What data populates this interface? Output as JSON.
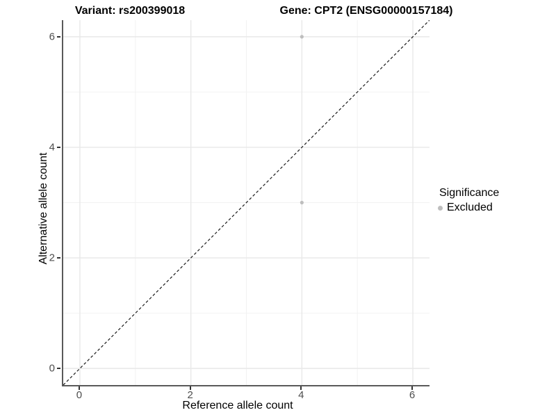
{
  "titles": {
    "variant": "Variant: rs200399018",
    "gene": "Gene: CPT2 (ENSG00000157184)"
  },
  "chart_data": {
    "type": "scatter",
    "title_left": "Variant: rs200399018",
    "title_right": "Gene: CPT2 (ENSG00000157184)",
    "xlabel": "Reference allele count",
    "ylabel": "Alternative allele count",
    "xlim": [
      -0.3,
      6.3
    ],
    "ylim": [
      -0.3,
      6.3
    ],
    "xticks": [
      0,
      2,
      4,
      6
    ],
    "yticks": [
      0,
      2,
      4,
      6
    ],
    "xticks_minor": [
      1,
      3,
      5
    ],
    "yticks_minor": [
      1,
      3,
      5
    ],
    "grid": "on",
    "aspect": "equal",
    "series": [
      {
        "name": "Excluded",
        "color": "#bebebe",
        "points": [
          {
            "x": 4,
            "y": 6
          },
          {
            "x": 4,
            "y": 3
          }
        ]
      }
    ],
    "reference_line": {
      "kind": "identity y=x",
      "style": "dashed",
      "color": "#1a1a1a"
    },
    "legend": {
      "title": "Significance",
      "position": "right",
      "entries": [
        {
          "label": "Excluded",
          "color": "#bebebe"
        }
      ]
    }
  },
  "colors": {
    "background": "#ffffff",
    "axis_line": "#595959",
    "tick_label": "#4d4d4d",
    "grid_major": "#e8e8e8",
    "grid_minor": "#f2f2f2",
    "point": "#bebebe"
  }
}
